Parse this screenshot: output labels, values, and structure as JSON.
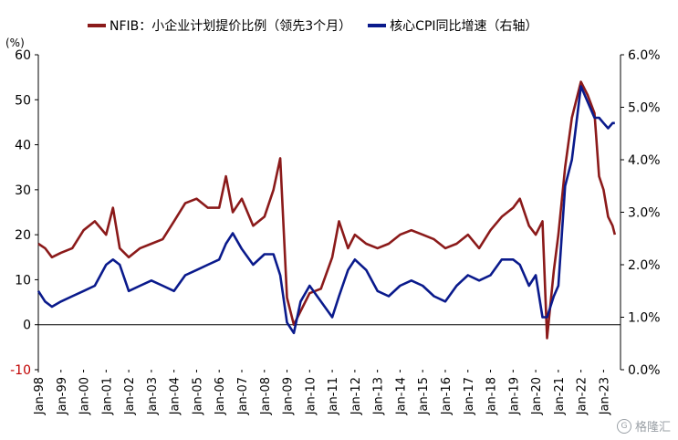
{
  "chart_data": {
    "type": "line",
    "unit_label": "(%)",
    "colors": {
      "nfib": "#8b1a1a",
      "cpi": "#0a1a8c"
    },
    "y_left": {
      "min": -10,
      "max": 60,
      "ticks": [
        "60",
        "50",
        "40",
        "30",
        "20",
        "10",
        "0",
        "-10"
      ]
    },
    "y_right": {
      "min": 0.0,
      "max": 6.0,
      "ticks": [
        "6.0%",
        "5.0%",
        "4.0%",
        "3.0%",
        "2.0%",
        "1.0%",
        "0.0%"
      ]
    },
    "x_labels": [
      "Jan-98",
      "Jan-99",
      "Jan-00",
      "Jan-01",
      "Jan-02",
      "Jan-03",
      "Jan-04",
      "Jan-05",
      "Jan-06",
      "Jan-07",
      "Jan-08",
      "Jan-09",
      "Jan-10",
      "Jan-11",
      "Jan-12",
      "Jan-13",
      "Jan-14",
      "Jan-15",
      "Jan-16",
      "Jan-17",
      "Jan-18",
      "Jan-19",
      "Jan-20",
      "Jan-21",
      "Jan-22",
      "Jan-23"
    ],
    "series": [
      {
        "name": "NFIB：小企业计划提价比例（领先3个月）",
        "axis": "left",
        "points": [
          [
            1998.0,
            18
          ],
          [
            1998.3,
            17
          ],
          [
            1998.6,
            15
          ],
          [
            1999.0,
            16
          ],
          [
            1999.5,
            17
          ],
          [
            2000.0,
            21
          ],
          [
            2000.5,
            23
          ],
          [
            2001.0,
            20
          ],
          [
            2001.3,
            26
          ],
          [
            2001.6,
            17
          ],
          [
            2002.0,
            15
          ],
          [
            2002.5,
            17
          ],
          [
            2003.0,
            18
          ],
          [
            2003.5,
            19
          ],
          [
            2004.0,
            23
          ],
          [
            2004.5,
            27
          ],
          [
            2005.0,
            28
          ],
          [
            2005.5,
            26
          ],
          [
            2006.0,
            26
          ],
          [
            2006.3,
            33
          ],
          [
            2006.6,
            25
          ],
          [
            2007.0,
            28
          ],
          [
            2007.5,
            22
          ],
          [
            2008.0,
            24
          ],
          [
            2008.4,
            30
          ],
          [
            2008.7,
            37
          ],
          [
            2009.0,
            6
          ],
          [
            2009.3,
            0
          ],
          [
            2009.6,
            3
          ],
          [
            2010.0,
            7
          ],
          [
            2010.5,
            8
          ],
          [
            2011.0,
            15
          ],
          [
            2011.3,
            23
          ],
          [
            2011.7,
            17
          ],
          [
            2012.0,
            20
          ],
          [
            2012.5,
            18
          ],
          [
            2013.0,
            17
          ],
          [
            2013.5,
            18
          ],
          [
            2014.0,
            20
          ],
          [
            2014.5,
            21
          ],
          [
            2015.0,
            20
          ],
          [
            2015.5,
            19
          ],
          [
            2016.0,
            17
          ],
          [
            2016.5,
            18
          ],
          [
            2017.0,
            20
          ],
          [
            2017.5,
            17
          ],
          [
            2018.0,
            21
          ],
          [
            2018.5,
            24
          ],
          [
            2019.0,
            26
          ],
          [
            2019.3,
            28
          ],
          [
            2019.7,
            22
          ],
          [
            2020.0,
            20
          ],
          [
            2020.3,
            23
          ],
          [
            2020.5,
            -3
          ],
          [
            2020.8,
            12
          ],
          [
            2021.0,
            20
          ],
          [
            2021.3,
            35
          ],
          [
            2021.6,
            46
          ],
          [
            2022.0,
            54
          ],
          [
            2022.3,
            51
          ],
          [
            2022.6,
            47
          ],
          [
            2022.8,
            33
          ],
          [
            2023.0,
            30
          ],
          [
            2023.2,
            24
          ],
          [
            2023.4,
            22
          ],
          [
            2023.5,
            20
          ]
        ]
      },
      {
        "name": "核心CPI同比增速（右轴）",
        "axis": "right",
        "points": [
          [
            1998.0,
            1.5
          ],
          [
            1998.3,
            1.3
          ],
          [
            1998.6,
            1.2
          ],
          [
            1999.0,
            1.3
          ],
          [
            1999.5,
            1.4
          ],
          [
            2000.0,
            1.5
          ],
          [
            2000.5,
            1.6
          ],
          [
            2001.0,
            2.0
          ],
          [
            2001.3,
            2.1
          ],
          [
            2001.6,
            2.0
          ],
          [
            2002.0,
            1.5
          ],
          [
            2002.5,
            1.6
          ],
          [
            2003.0,
            1.7
          ],
          [
            2003.5,
            1.6
          ],
          [
            2004.0,
            1.5
          ],
          [
            2004.5,
            1.8
          ],
          [
            2005.0,
            1.9
          ],
          [
            2005.5,
            2.0
          ],
          [
            2006.0,
            2.1
          ],
          [
            2006.3,
            2.4
          ],
          [
            2006.6,
            2.6
          ],
          [
            2007.0,
            2.3
          ],
          [
            2007.5,
            2.0
          ],
          [
            2008.0,
            2.2
          ],
          [
            2008.4,
            2.2
          ],
          [
            2008.7,
            1.8
          ],
          [
            2009.0,
            0.9
          ],
          [
            2009.3,
            0.7
          ],
          [
            2009.6,
            1.3
          ],
          [
            2010.0,
            1.6
          ],
          [
            2010.5,
            1.3
          ],
          [
            2011.0,
            1.0
          ],
          [
            2011.3,
            1.4
          ],
          [
            2011.7,
            1.9
          ],
          [
            2012.0,
            2.1
          ],
          [
            2012.5,
            1.9
          ],
          [
            2013.0,
            1.5
          ],
          [
            2013.5,
            1.4
          ],
          [
            2014.0,
            1.6
          ],
          [
            2014.5,
            1.7
          ],
          [
            2015.0,
            1.6
          ],
          [
            2015.5,
            1.4
          ],
          [
            2016.0,
            1.3
          ],
          [
            2016.5,
            1.6
          ],
          [
            2017.0,
            1.8
          ],
          [
            2017.5,
            1.7
          ],
          [
            2018.0,
            1.8
          ],
          [
            2018.5,
            2.1
          ],
          [
            2019.0,
            2.1
          ],
          [
            2019.3,
            2.0
          ],
          [
            2019.7,
            1.6
          ],
          [
            2020.0,
            1.8
          ],
          [
            2020.3,
            1.0
          ],
          [
            2020.5,
            1.0
          ],
          [
            2020.8,
            1.4
          ],
          [
            2021.0,
            1.6
          ],
          [
            2021.3,
            3.5
          ],
          [
            2021.6,
            4.0
          ],
          [
            2022.0,
            5.4
          ],
          [
            2022.3,
            5.1
          ],
          [
            2022.6,
            4.8
          ],
          [
            2022.8,
            4.8
          ],
          [
            2023.0,
            4.7
          ],
          [
            2023.2,
            4.6
          ],
          [
            2023.4,
            4.7
          ],
          [
            2023.5,
            4.7
          ]
        ]
      }
    ]
  },
  "watermark": "格隆汇"
}
